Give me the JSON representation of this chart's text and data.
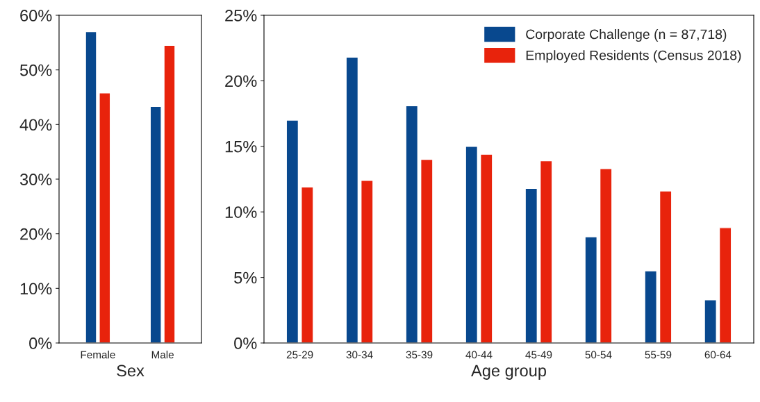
{
  "chart_data": [
    {
      "type": "bar",
      "xlabel": "Sex",
      "categories": [
        "Female",
        "Male"
      ],
      "series": [
        {
          "color": "#08488e",
          "values": [
            57.0,
            43.3
          ]
        },
        {
          "color": "#e8230c",
          "values": [
            45.8,
            54.5
          ]
        }
      ],
      "ylim": [
        0,
        60
      ],
      "yticks": [
        {
          "value": 0,
          "label": "0%"
        },
        {
          "value": 10,
          "label": "10%"
        },
        {
          "value": 20,
          "label": "20%"
        },
        {
          "value": 30,
          "label": "30%"
        },
        {
          "value": 40,
          "label": "40%"
        },
        {
          "value": 50,
          "label": "50%"
        },
        {
          "value": 60,
          "label": "60%"
        }
      ],
      "grid": false,
      "legend": false
    },
    {
      "type": "bar",
      "xlabel": "Age group",
      "categories": [
        "25-29",
        "30-34",
        "35-39",
        "40-44",
        "45-49",
        "50-54",
        "55-59",
        "60-64"
      ],
      "series": [
        {
          "name": "Corporate Challenge (n = 87,718)",
          "color": "#08488e",
          "values": [
            17.0,
            21.8,
            18.1,
            15.0,
            11.8,
            8.1,
            5.5,
            3.3
          ]
        },
        {
          "name": "Employed Residents (Census 2018)",
          "color": "#e8230c",
          "values": [
            11.9,
            12.4,
            14.0,
            14.4,
            13.9,
            13.3,
            11.6,
            8.8
          ]
        }
      ],
      "ylim": [
        0,
        25
      ],
      "yticks": [
        {
          "value": 0,
          "label": "0%"
        },
        {
          "value": 5,
          "label": "5%"
        },
        {
          "value": 10,
          "label": "10%"
        },
        {
          "value": 15,
          "label": "15%"
        },
        {
          "value": 20,
          "label": "20%"
        },
        {
          "value": 25,
          "label": "25%"
        }
      ],
      "grid": false,
      "legend": "top right"
    }
  ]
}
